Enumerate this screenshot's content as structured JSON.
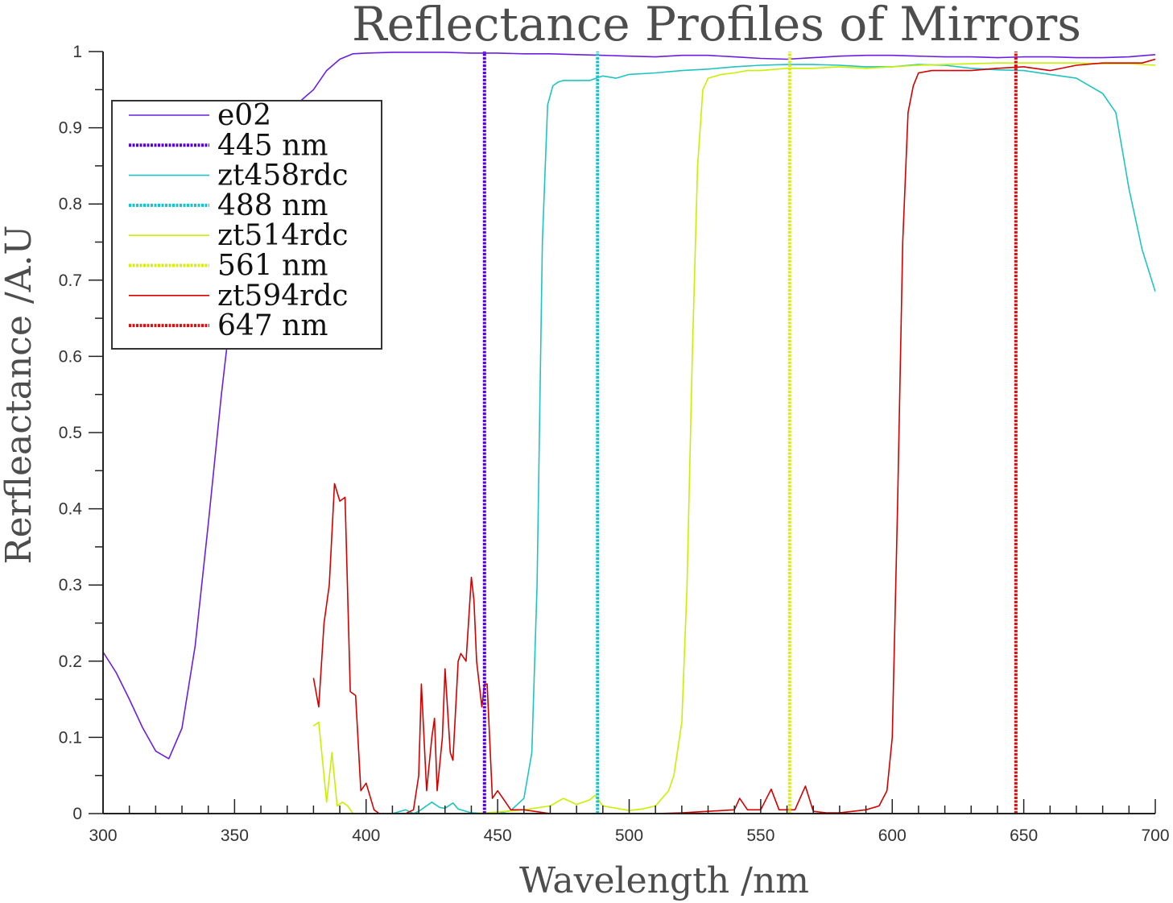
{
  "chart_data": {
    "type": "line",
    "title": "Reflectance Profiles of Mirrors",
    "xlabel": "Wavelength /nm",
    "ylabel": "Rerfleactance /A.U",
    "xlim": [
      300,
      700
    ],
    "ylim": [
      0,
      1
    ],
    "x_ticks": [
      300,
      350,
      400,
      450,
      500,
      550,
      600,
      650,
      700
    ],
    "x_tick_labels": [
      "300",
      "350",
      "400",
      "450",
      "500",
      "550",
      "600",
      "650",
      "700"
    ],
    "y_ticks": [
      0,
      0.1,
      0.2,
      0.3,
      0.4,
      0.5,
      0.6,
      0.7,
      0.8,
      0.9,
      1
    ],
    "y_tick_labels": [
      "0",
      "0.1",
      "0.2",
      "0.3",
      "0.4",
      "0.5",
      "0.6",
      "0.7",
      "0.8",
      "0.9",
      "1"
    ],
    "grid": false,
    "legend_position": "top-left",
    "series": [
      {
        "name": "e02",
        "kind": "line",
        "color": "#6a1fe0",
        "x": [
          300,
          305,
          310,
          315,
          320,
          325,
          330,
          335,
          340,
          345,
          350,
          355,
          360,
          365,
          370,
          375,
          380,
          385,
          390,
          395,
          400,
          410,
          420,
          430,
          440,
          450,
          460,
          470,
          480,
          490,
          500,
          510,
          520,
          530,
          540,
          550,
          560,
          570,
          580,
          590,
          600,
          610,
          620,
          630,
          640,
          650,
          660,
          670,
          680,
          690,
          700
        ],
        "y": [
          0.212,
          0.185,
          0.15,
          0.113,
          0.082,
          0.072,
          0.112,
          0.22,
          0.38,
          0.55,
          0.7,
          0.8,
          0.86,
          0.9,
          0.92,
          0.935,
          0.95,
          0.975,
          0.99,
          0.997,
          0.998,
          0.999,
          0.999,
          0.999,
          0.998,
          0.998,
          0.997,
          0.997,
          0.996,
          0.995,
          0.994,
          0.993,
          0.995,
          0.995,
          0.993,
          0.991,
          0.99,
          0.992,
          0.994,
          0.995,
          0.995,
          0.994,
          0.993,
          0.993,
          0.992,
          0.993,
          0.993,
          0.992,
          0.992,
          0.993,
          0.996
        ]
      },
      {
        "name": "445 nm",
        "kind": "vline",
        "x_value": 445,
        "color": "#5a00e0"
      },
      {
        "name": "zt458rdc",
        "kind": "line",
        "color": "#1fc4c0",
        "x": [
          380,
          400,
          410,
          415,
          418,
          420,
          425,
          428,
          430,
          433,
          435,
          440,
          450,
          455,
          460,
          463,
          465,
          467,
          469,
          471,
          473,
          475,
          480,
          485,
          490,
          495,
          500,
          510,
          520,
          530,
          540,
          550,
          560,
          570,
          580,
          590,
          600,
          610,
          620,
          630,
          640,
          650,
          660,
          670,
          675,
          680,
          685,
          690,
          695,
          700
        ],
        "y": [
          0.0,
          0.0,
          0.0,
          0.005,
          0.0,
          0.003,
          0.015,
          0.008,
          0.007,
          0.014,
          0.006,
          0.001,
          0.0,
          0.004,
          0.02,
          0.08,
          0.3,
          0.75,
          0.93,
          0.955,
          0.96,
          0.962,
          0.962,
          0.962,
          0.968,
          0.965,
          0.97,
          0.972,
          0.975,
          0.977,
          0.98,
          0.982,
          0.983,
          0.983,
          0.982,
          0.98,
          0.98,
          0.983,
          0.982,
          0.978,
          0.976,
          0.975,
          0.97,
          0.965,
          0.955,
          0.945,
          0.92,
          0.82,
          0.74,
          0.685
        ]
      },
      {
        "name": "488 nm",
        "kind": "vline",
        "x_value": 488,
        "color": "#10c4d0"
      },
      {
        "name": "zt514rdc",
        "kind": "line",
        "color": "#c8f000",
        "x": [
          380,
          382,
          385,
          387,
          389,
          391,
          393,
          395,
          400,
          410,
          420,
          430,
          440,
          450,
          460,
          470,
          475,
          480,
          485,
          487,
          490,
          500,
          505,
          510,
          515,
          517,
          520,
          522,
          524,
          526,
          528,
          530,
          535,
          540,
          545,
          550,
          560,
          570,
          580,
          590,
          600,
          610,
          620,
          630,
          640,
          650,
          660,
          670,
          680,
          690,
          700
        ],
        "y": [
          0.115,
          0.12,
          0.015,
          0.08,
          0.01,
          0.015,
          0.01,
          0.0,
          0.0,
          0.0,
          0.0,
          0.0,
          0.0,
          0.002,
          0.005,
          0.01,
          0.02,
          0.012,
          0.018,
          0.024,
          0.01,
          0.004,
          0.006,
          0.01,
          0.03,
          0.05,
          0.12,
          0.3,
          0.6,
          0.85,
          0.95,
          0.965,
          0.97,
          0.972,
          0.975,
          0.975,
          0.978,
          0.978,
          0.98,
          0.978,
          0.98,
          0.982,
          0.983,
          0.984,
          0.985,
          0.985,
          0.985,
          0.985,
          0.984,
          0.984,
          0.982
        ]
      },
      {
        "name": "561 nm",
        "kind": "vline",
        "x_value": 561,
        "color": "#d8ee10"
      },
      {
        "name": "zt594rdc",
        "kind": "line",
        "color": "#d40000",
        "x": [
          380,
          382,
          384,
          386,
          388,
          390,
          392,
          394,
          396,
          398,
          400,
          403,
          405,
          410,
          415,
          418,
          420,
          421,
          423,
          425,
          426,
          427,
          429,
          430,
          432,
          433,
          435,
          436,
          438,
          440,
          441,
          442,
          444,
          445,
          446,
          448,
          450,
          452,
          455,
          460,
          470,
          480,
          490,
          500,
          510,
          520,
          530,
          540,
          542,
          545,
          550,
          554,
          557,
          560,
          563,
          567,
          570,
          575,
          580,
          590,
          595,
          598,
          600,
          602,
          604,
          606,
          608,
          610,
          615,
          620,
          630,
          640,
          650,
          660,
          670,
          680,
          690,
          695,
          700
        ],
        "y": [
          0.178,
          0.14,
          0.25,
          0.3,
          0.433,
          0.41,
          0.415,
          0.16,
          0.155,
          0.03,
          0.04,
          0.005,
          0.0,
          0.0,
          0.0,
          0.005,
          0.05,
          0.17,
          0.03,
          0.1,
          0.125,
          0.03,
          0.1,
          0.19,
          0.08,
          0.07,
          0.2,
          0.21,
          0.2,
          0.31,
          0.28,
          0.2,
          0.14,
          0.17,
          0.17,
          0.02,
          0.03,
          0.02,
          0.005,
          0.005,
          0.0,
          0.0,
          0.0,
          0.0,
          0.0,
          0.001,
          0.003,
          0.005,
          0.02,
          0.005,
          0.005,
          0.032,
          0.005,
          0.005,
          0.005,
          0.036,
          0.003,
          0.001,
          0.001,
          0.005,
          0.01,
          0.03,
          0.1,
          0.4,
          0.75,
          0.92,
          0.955,
          0.972,
          0.975,
          0.975,
          0.975,
          0.978,
          0.98,
          0.975,
          0.982,
          0.985,
          0.985,
          0.985,
          0.99
        ]
      },
      {
        "name": "647 nm",
        "kind": "vline",
        "x_value": 647,
        "color": "#d81010"
      }
    ]
  }
}
